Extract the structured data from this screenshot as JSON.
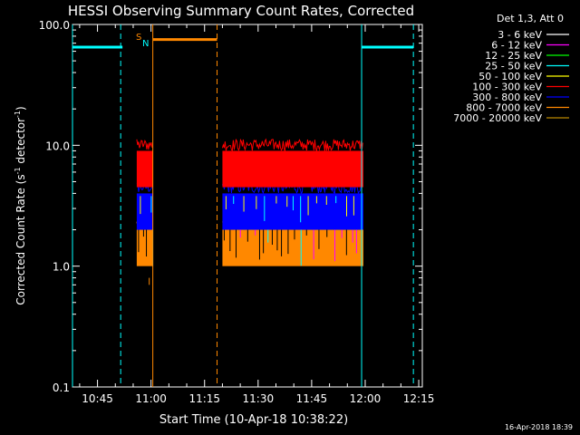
{
  "chart_data": {
    "type": "line",
    "title": "HESSI Observing Summary Count Rates, Corrected",
    "xlabel": "Start Time (10-Apr-18 10:38:22)",
    "ylabel_main": "Corrected Count Rate (s",
    "ylabel_sup1": "-1",
    "ylabel_mid": " detector",
    "ylabel_sup2": "-1",
    "ylabel_end": ")",
    "yscale": "log",
    "ylim": [
      0.1,
      100.0
    ],
    "xlim_minutes": [
      38.0,
      136.0
    ],
    "x_ticks": [
      {
        "m": 45,
        "label": "10:45"
      },
      {
        "m": 60,
        "label": "11:00"
      },
      {
        "m": 75,
        "label": "11:15"
      },
      {
        "m": 90,
        "label": "11:30"
      },
      {
        "m": 105,
        "label": "11:45"
      },
      {
        "m": 120,
        "label": "12:00"
      },
      {
        "m": 135,
        "label": "12:15"
      }
    ],
    "y_ticks": [
      {
        "v": 100.0,
        "label": "100.0"
      },
      {
        "v": 10.0,
        "label": "10.0"
      },
      {
        "v": 1.0,
        "label": "1.0"
      },
      {
        "v": 0.1,
        "label": "0.1"
      }
    ],
    "legend_header": "Det 1,3, Att 0",
    "legend": [
      {
        "label": "3 - 6 keV",
        "color": "#ffffff"
      },
      {
        "label": "6 - 12 keV",
        "color": "#ff00ff"
      },
      {
        "label": "12 - 25 keV",
        "color": "#00ff00"
      },
      {
        "label": "25 - 50 keV",
        "color": "#00ffff"
      },
      {
        "label": "50 - 100 keV",
        "color": "#ffff00"
      },
      {
        "label": "100 - 300 keV",
        "color": "#ff0000"
      },
      {
        "label": "300 - 800 keV",
        "color": "#0000ff"
      },
      {
        "label": "800 - 7000 keV",
        "color": "#ff8800"
      },
      {
        "label": "7000 - 20000 keV",
        "color": "#bb8800"
      }
    ],
    "flag_labels": {
      "s": "S",
      "n": "N"
    },
    "segments": [
      {
        "start": 56.0,
        "end": 60.5
      },
      {
        "start": 80.0,
        "end": 119.5
      }
    ],
    "bands": [
      {
        "name": "800 - 7000 keV",
        "color": "#ff8800",
        "lo": 1.0,
        "hi": 2.0
      },
      {
        "name": "300 - 800 keV",
        "color": "#0000ff",
        "lo": 2.0,
        "hi": 4.0
      },
      {
        "name": "100 - 300 keV",
        "color": "#ff0000",
        "lo": 4.5,
        "hi": 9.0
      }
    ],
    "cyan_bars": [
      {
        "x0": 38.0,
        "x1": 52.0,
        "y": 65.0
      },
      {
        "x0": 119.0,
        "x1": 133.5,
        "y": 65.0
      }
    ],
    "orange_bar": {
      "x0": 60.5,
      "x1": 78.5,
      "y": 75.0
    },
    "vlines": [
      {
        "m": 38.0,
        "color": "#00ffff",
        "dash": false
      },
      {
        "m": 51.5,
        "color": "#00ffff",
        "dash": true
      },
      {
        "m": 60.5,
        "color": "#ff8800",
        "dash": false
      },
      {
        "m": 78.5,
        "color": "#ff8800",
        "dash": true
      },
      {
        "m": 119.0,
        "color": "#00ffff",
        "dash": false
      },
      {
        "m": 133.5,
        "color": "#00ffff",
        "dash": true
      }
    ],
    "timestamp": "16-Apr-2018 18:39"
  }
}
